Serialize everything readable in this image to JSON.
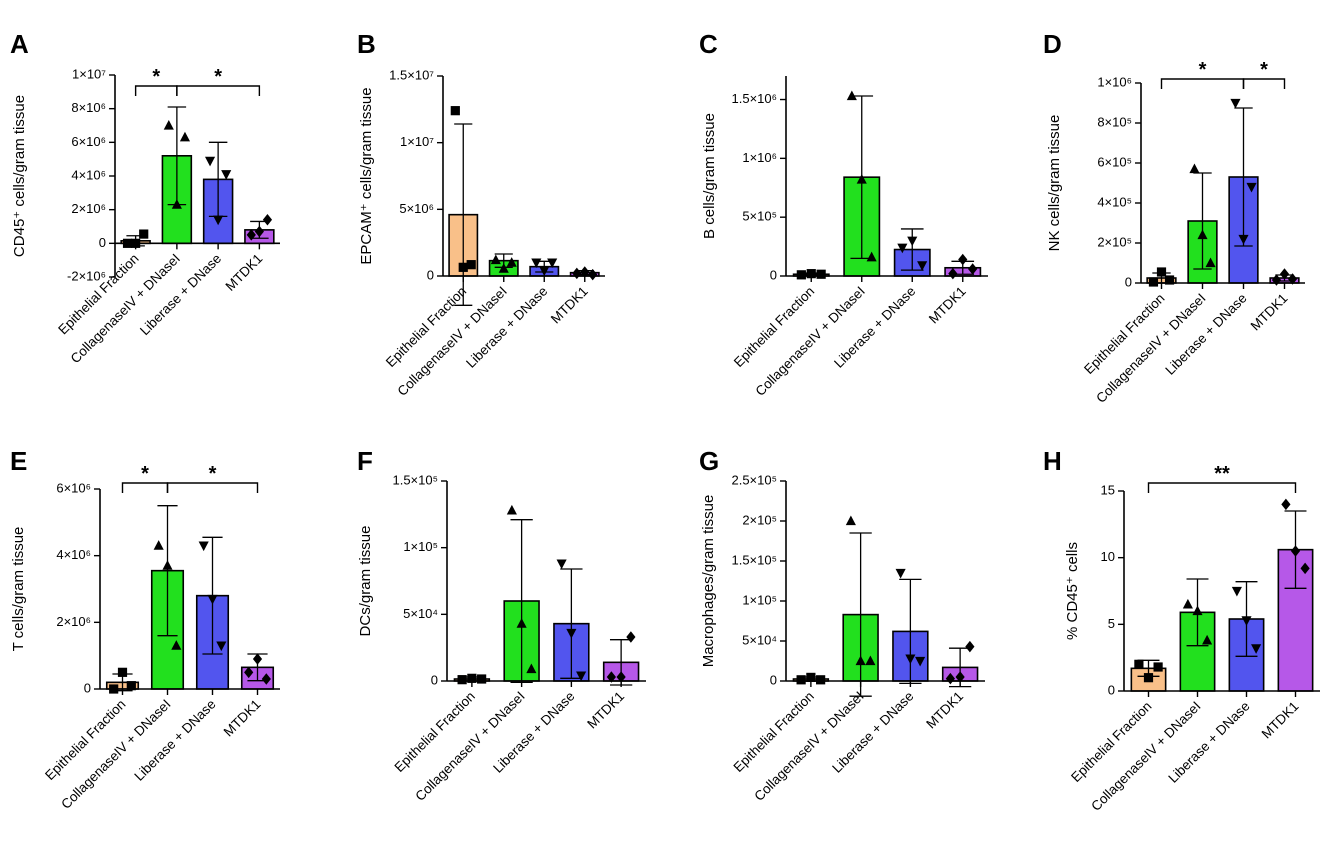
{
  "figure": {
    "groups": [
      "Epithelial Fraction",
      "CollagenaseIV + DNaseI",
      "Liberase + DNase",
      "MTDK1"
    ],
    "colors": {
      "Epithelial Fraction": "#f9c089",
      "CollagenaseIV + DNaseI": "#22e01e",
      "Liberase + DNase": "#5255ee",
      "MTDK1": "#b658e8"
    },
    "marker_shapes": [
      "square",
      "triangle-up",
      "triangle-down",
      "diamond"
    ]
  },
  "chart_data": [
    {
      "letter": "A",
      "type": "bar",
      "ylabel": "CD45⁺ cells/gram tissue",
      "categories": [
        "Epithelial Fraction",
        "CollagenaseIV + DNaseI",
        "Liberase + DNase",
        "MTDK1"
      ],
      "ylim": [
        -2000000,
        10000000
      ],
      "yticks": [
        -2000000,
        0,
        2000000,
        4000000,
        6000000,
        8000000,
        10000000
      ],
      "ytick_labels": [
        "-2×10⁶",
        "0",
        "2×10⁶",
        "4×10⁶",
        "6×10⁶",
        "8×10⁶",
        "1×10⁷"
      ],
      "values": [
        150000,
        5200000,
        3800000,
        800000
      ],
      "sd": [
        300000,
        2900000,
        2200000,
        500000
      ],
      "points": [
        [
          0,
          0,
          550000
        ],
        [
          7000000,
          2300000,
          6300000
        ],
        [
          4900000,
          1400000,
          4100000
        ],
        [
          500000,
          700000,
          1400000
        ]
      ],
      "significance": [
        {
          "from": 0,
          "to": 1,
          "label": "*"
        },
        {
          "from": 1,
          "to": 3,
          "label": "*"
        }
      ]
    },
    {
      "letter": "B",
      "type": "bar",
      "ylabel": "EPCAM⁺ cells/gram tissue",
      "categories": [
        "Epithelial Fraction",
        "CollagenaseIV + DNaseI",
        "Liberase + DNase",
        "MTDK1"
      ],
      "ylim": [
        0,
        15000000
      ],
      "yticks": [
        0,
        5000000,
        10000000,
        15000000
      ],
      "ytick_labels": [
        "0",
        "5×10⁶",
        "1×10⁷",
        "1.5×10⁷"
      ],
      "values": [
        4600000,
        1150000,
        700000,
        250000
      ],
      "sd": [
        6800000,
        500000,
        400000,
        150000
      ],
      "points": [
        [
          12400000,
          650000,
          850000
        ],
        [
          1200000,
          550000,
          1000000
        ],
        [
          1000000,
          400000,
          1000000
        ],
        [
          200000,
          300000,
          100000
        ]
      ],
      "significance": []
    },
    {
      "letter": "C",
      "type": "bar",
      "ylabel": "B cells/gram tissue",
      "categories": [
        "Epithelial Fraction",
        "CollagenaseIV + DNaseI",
        "Liberase + DNase",
        "MTDK1"
      ],
      "ylim": [
        0,
        1700000
      ],
      "yticks": [
        0,
        500000,
        1000000,
        1500000
      ],
      "ytick_labels": [
        "0",
        "5×10⁵",
        "1×10⁶",
        "1.5×10⁶"
      ],
      "values": [
        15000,
        840000,
        225000,
        70000
      ],
      "sd": [
        10000,
        690000,
        175000,
        55000
      ],
      "points": [
        [
          10000,
          20000,
          15000
        ],
        [
          1530000,
          820000,
          160000
        ],
        [
          240000,
          300000,
          90000
        ],
        [
          20000,
          140000,
          60000
        ]
      ],
      "significance": []
    },
    {
      "letter": "D",
      "type": "bar",
      "ylabel": "NK cells/gram tissue",
      "categories": [
        "Epithelial Fraction",
        "CollagenaseIV + DNaseI",
        "Liberase + DNase",
        "MTDK1"
      ],
      "ylim": [
        0,
        1000000
      ],
      "yticks": [
        0,
        200000,
        400000,
        600000,
        800000,
        1000000
      ],
      "ytick_labels": [
        "0",
        "2×10⁵",
        "4×10⁵",
        "6×10⁵",
        "8×10⁵",
        "1×10⁶"
      ],
      "values": [
        25000,
        310000,
        530000,
        25000
      ],
      "sd": [
        25000,
        240000,
        345000,
        15000
      ],
      "points": [
        [
          5000,
          55000,
          15000
        ],
        [
          570000,
          240000,
          100000
        ],
        [
          900000,
          220000,
          480000
        ],
        [
          15000,
          45000,
          20000
        ]
      ],
      "significance": [
        {
          "from": 0,
          "to": 2,
          "label": "*"
        },
        {
          "from": 2,
          "to": 3,
          "label": "*"
        }
      ]
    },
    {
      "letter": "E",
      "type": "bar",
      "ylabel": "T cells/gram tissue",
      "categories": [
        "Epithelial Fraction",
        "CollagenaseIV + DNaseI",
        "Liberase + DNase",
        "MTDK1"
      ],
      "ylim": [
        0,
        6000000
      ],
      "yticks": [
        0,
        2000000,
        4000000,
        6000000
      ],
      "ytick_labels": [
        "0",
        "2×10⁶",
        "4×10⁶",
        "6×10⁶"
      ],
      "values": [
        200000,
        3550000,
        2800000,
        650000
      ],
      "sd": [
        250000,
        1950000,
        1750000,
        400000
      ],
      "points": [
        [
          0,
          500000,
          100000
        ],
        [
          4300000,
          3700000,
          1300000
        ],
        [
          4300000,
          2700000,
          1300000
        ],
        [
          500000,
          900000,
          300000
        ]
      ],
      "significance": [
        {
          "from": 0,
          "to": 1,
          "label": "*"
        },
        {
          "from": 1,
          "to": 3,
          "label": "*"
        }
      ]
    },
    {
      "letter": "F",
      "type": "bar",
      "ylabel": "DCs/gram tissue",
      "categories": [
        "Epithelial Fraction",
        "CollagenaseIV + DNaseI",
        "Liberase + DNase",
        "MTDK1"
      ],
      "ylim": [
        0,
        150000
      ],
      "yticks": [
        0,
        50000,
        100000,
        150000
      ],
      "ytick_labels": [
        "0",
        "5×10⁴",
        "1×10⁵",
        "1.5×10⁵"
      ],
      "values": [
        1500,
        60000,
        43000,
        14000
      ],
      "sd": [
        1500,
        61000,
        41000,
        17000
      ],
      "points": [
        [
          1000,
          2000,
          1500
        ],
        [
          128000,
          43000,
          9000
        ],
        [
          88000,
          36000,
          4000
        ],
        [
          3000,
          3000,
          33000
        ]
      ],
      "significance": []
    },
    {
      "letter": "G",
      "type": "bar",
      "ylabel": "Macrophages/gram tissue",
      "categories": [
        "Epithelial Fraction",
        "CollagenaseIV + DNaseI",
        "Liberase + DNase",
        "MTDK1"
      ],
      "ylim": [
        0,
        250000
      ],
      "yticks": [
        0,
        50000,
        100000,
        150000,
        200000,
        250000
      ],
      "ytick_labels": [
        "0",
        "5×10⁴",
        "1×10⁵",
        "1.5×10⁵",
        "2×10⁵",
        "2.5×10⁵"
      ],
      "values": [
        2500,
        83000,
        62000,
        17000
      ],
      "sd": [
        2500,
        102000,
        65000,
        24000
      ],
      "points": [
        [
          1500,
          4500,
          1500
        ],
        [
          200000,
          25000,
          25000
        ],
        [
          135000,
          28000,
          25000
        ],
        [
          3000,
          5000,
          43000
        ]
      ],
      "significance": []
    },
    {
      "letter": "H",
      "type": "bar",
      "ylabel": "% CD45⁺ cells",
      "categories": [
        "Epithelial Fraction",
        "CollagenaseIV + DNaseI",
        "Liberase + DNase",
        "MTDK1"
      ],
      "ylim": [
        0,
        15
      ],
      "yticks": [
        0,
        5,
        10,
        15
      ],
      "ytick_labels": [
        "0",
        "5",
        "10",
        "15"
      ],
      "values": [
        1.7,
        5.9,
        5.4,
        10.6
      ],
      "sd": [
        0.6,
        2.5,
        2.8,
        2.9
      ],
      "points": [
        [
          2.0,
          1.0,
          1.8
        ],
        [
          6.5,
          6.0,
          3.8
        ],
        [
          7.5,
          5.3,
          3.2
        ],
        [
          14.0,
          10.5,
          9.2
        ]
      ],
      "significance": [
        {
          "from": 0,
          "to": 3,
          "label": "**"
        }
      ]
    }
  ]
}
